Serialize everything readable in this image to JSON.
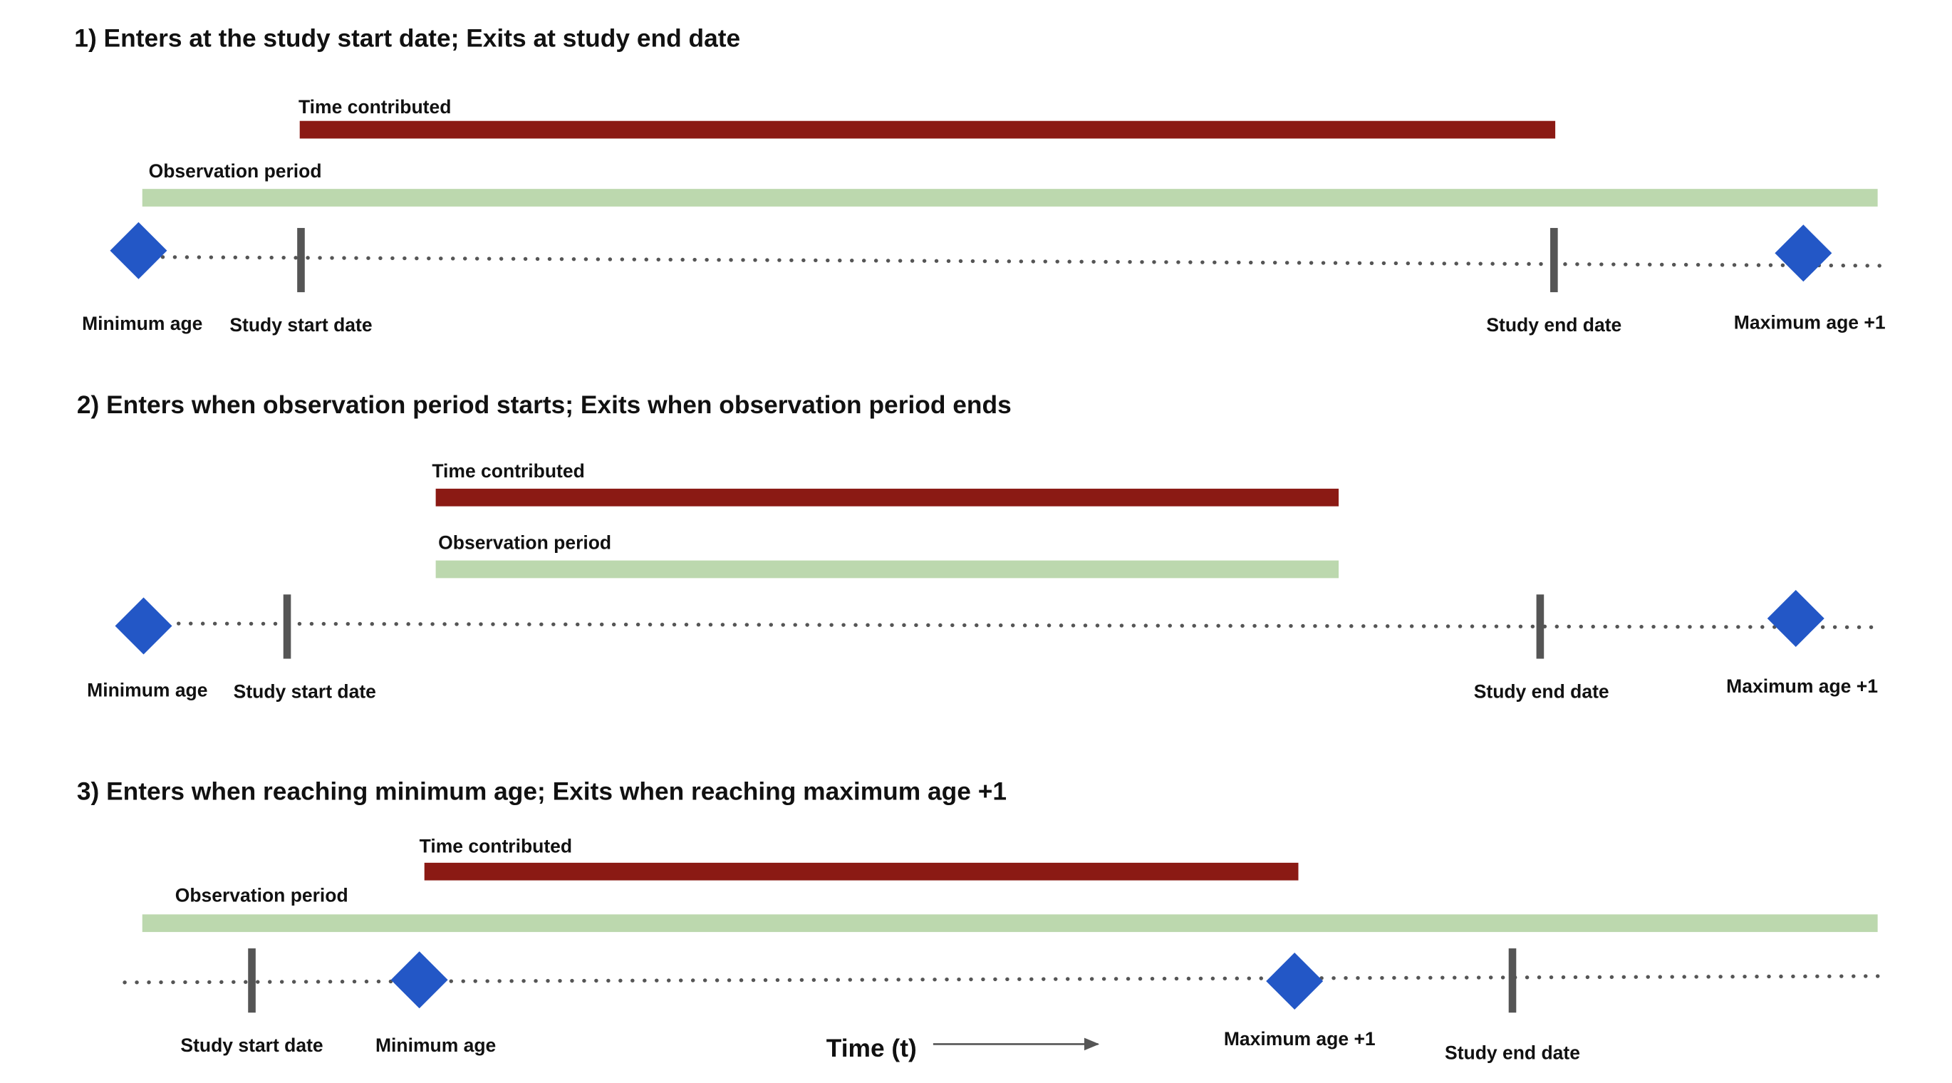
{
  "colors": {
    "time_contributed": "#8b1a14",
    "observation_period": "#bcd8ae",
    "age_marker": "#2357c6",
    "date_marker": "#555555",
    "timeline": "#555555"
  },
  "scenarios": [
    {
      "heading": "1)  Enters at the study start date; Exits at study end date",
      "time_contributed_label": "Time contributed",
      "observation_period_label": "Observation period",
      "minimum_age_label": "Minimum age",
      "study_start_label": "Study start date",
      "study_end_label": "Study end date",
      "maximum_age_label": "Maximum age +1"
    },
    {
      "heading": "2)  Enters when observation period starts; Exits when observation period ends",
      "time_contributed_label": "Time contributed",
      "observation_period_label": "Observation period",
      "minimum_age_label": "Minimum age",
      "study_start_label": "Study start date",
      "study_end_label": "Study end date",
      "maximum_age_label": "Maximum age +1"
    },
    {
      "heading": "3)  Enters when reaching minimum age; Exits when reaching maximum age +1",
      "time_contributed_label": "Time contributed",
      "observation_period_label": "Observation period",
      "minimum_age_label": "Minimum age",
      "study_start_label": "Study start date",
      "study_end_label": "Study end date",
      "maximum_age_label": "Maximum age +1"
    }
  ],
  "time_axis_label": "Time (t)"
}
